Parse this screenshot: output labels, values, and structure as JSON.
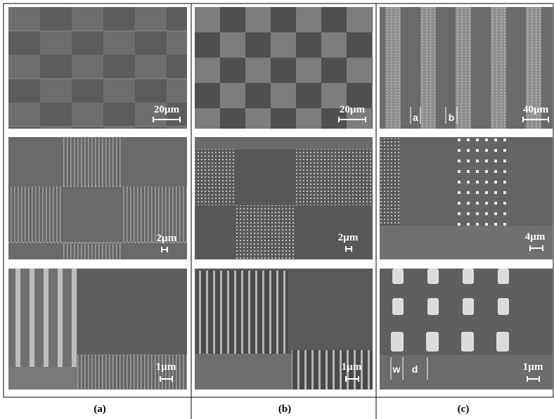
{
  "columns": [
    {
      "label": "(a)",
      "images": [
        {
          "scale": "20µm"
        },
        {
          "scale": "2µm"
        },
        {
          "scale": "1µm"
        }
      ]
    },
    {
      "label": "(b)",
      "images": [
        {
          "scale": "20µm"
        },
        {
          "scale": "2µm"
        },
        {
          "scale": "1µm"
        }
      ]
    },
    {
      "label": "(c)",
      "images": [
        {
          "scale": "40µm",
          "annotations": [
            "a",
            "b"
          ]
        },
        {
          "scale": "4µm"
        },
        {
          "scale": "1µm",
          "annotations": [
            "w",
            "d"
          ]
        }
      ]
    }
  ]
}
